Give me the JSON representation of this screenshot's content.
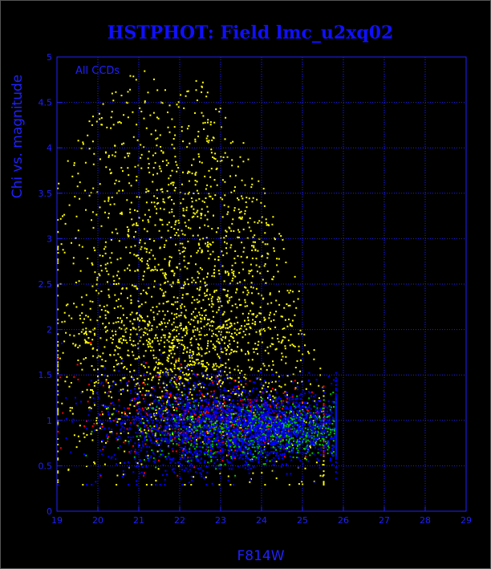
{
  "chart_data": {
    "type": "scatter",
    "title": "HSTPHOT: Field lmc_u2xq02",
    "xlabel": "F814W",
    "ylabel": "Chi vs. magnitude",
    "annotation": "All CCDs",
    "xlim": [
      19,
      29
    ],
    "ylim": [
      0,
      5
    ],
    "x_ticks": [
      19,
      20,
      21,
      22,
      23,
      24,
      25,
      26,
      27,
      28,
      29
    ],
    "y_ticks": [
      0,
      0.5,
      1,
      1.5,
      2,
      2.5,
      3,
      3.5,
      4,
      4.5,
      5
    ],
    "y_tick_labels": [
      "0",
      "0.5",
      "1",
      "1.5",
      "2",
      "2.5",
      "3",
      "3.5",
      "4",
      "4.5",
      "5"
    ],
    "grid": true,
    "colors": {
      "background": "#000000",
      "axis": "#2020ff",
      "grid": "#2020ff"
    },
    "series": [
      {
        "color": "#ffff00",
        "x_range": [
          19,
          25.5
        ],
        "y_range": [
          0.3,
          5
        ],
        "x_peak": 22.0,
        "y_peak": 2.2,
        "density": "high"
      },
      {
        "color": "#0000ff",
        "x_range": [
          19,
          25.8
        ],
        "y_range": [
          0.3,
          2.3
        ],
        "x_peak": 23.5,
        "y_peak": 0.95,
        "density": "very high"
      },
      {
        "color": "#00cc00",
        "x_range": [
          19.5,
          25.8
        ],
        "y_range": [
          0.4,
          1.8
        ],
        "x_peak": 24.2,
        "y_peak": 0.9,
        "density": "medium"
      },
      {
        "color": "#ff0000",
        "x_range": [
          19,
          25.5
        ],
        "y_range": [
          0.4,
          2.2
        ],
        "x_peak": 23.0,
        "y_peak": 1.0,
        "density": "low"
      }
    ]
  }
}
